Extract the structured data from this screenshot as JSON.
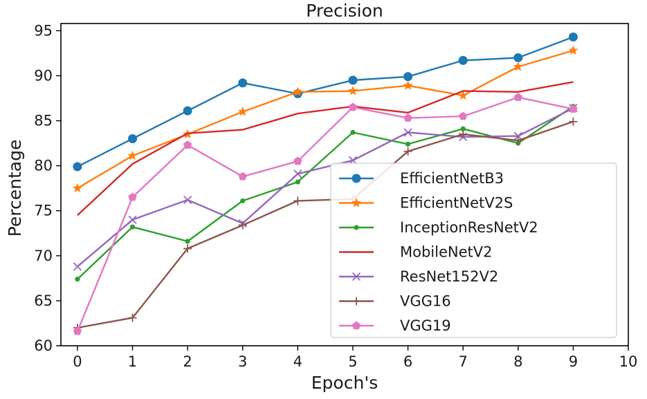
{
  "chart_data": {
    "type": "line",
    "title": "Precision",
    "xlabel": "Epoch's",
    "ylabel": "Percentage",
    "x": [
      0,
      1,
      2,
      3,
      4,
      5,
      6,
      7,
      8,
      9
    ],
    "xlim": [
      -0.3,
      10
    ],
    "ylim": [
      60,
      95.8
    ],
    "xticks": [
      "0",
      "1",
      "2",
      "3",
      "4",
      "5",
      "6",
      "7",
      "8",
      "9",
      "10"
    ],
    "yticks": [
      "60",
      "65",
      "70",
      "75",
      "80",
      "85",
      "90",
      "95"
    ],
    "grid": false,
    "legend_position": "center-right",
    "series": [
      {
        "name": "EfficientNetB3",
        "color": "#1f77b4",
        "marker": "circle",
        "values": [
          79.9,
          83.0,
          86.1,
          89.2,
          88.0,
          89.5,
          89.9,
          91.7,
          92.0,
          94.3
        ]
      },
      {
        "name": "EfficientNetV2S",
        "color": "#ff7f0e",
        "marker": "star",
        "values": [
          77.5,
          81.1,
          83.5,
          86.0,
          88.2,
          88.3,
          88.9,
          87.8,
          91.0,
          92.8
        ]
      },
      {
        "name": "InceptionResNetV2",
        "color": "#2ca02c",
        "marker": "dot",
        "values": [
          67.4,
          73.2,
          71.6,
          76.1,
          78.2,
          83.7,
          82.4,
          84.1,
          82.5,
          86.6
        ]
      },
      {
        "name": "MobileNetV2",
        "color": "#d62728",
        "marker": "none",
        "values": [
          74.5,
          80.2,
          83.6,
          84.0,
          85.8,
          86.6,
          85.9,
          88.3,
          88.2,
          89.3
        ]
      },
      {
        "name": "ResNet152V2",
        "color": "#9467bd",
        "marker": "x",
        "values": [
          68.8,
          74.0,
          76.2,
          73.6,
          79.1,
          80.6,
          83.7,
          83.2,
          83.3,
          86.4
        ]
      },
      {
        "name": "VGG16",
        "color": "#8c564b",
        "marker": "plus",
        "values": [
          62.0,
          63.1,
          70.8,
          73.4,
          76.1,
          76.3,
          81.6,
          83.5,
          82.8,
          84.9
        ]
      },
      {
        "name": "VGG19",
        "color": "#e377c2",
        "marker": "pentagon",
        "values": [
          61.6,
          76.5,
          82.3,
          78.8,
          80.5,
          86.5,
          85.3,
          85.5,
          87.6,
          86.3
        ]
      }
    ]
  }
}
